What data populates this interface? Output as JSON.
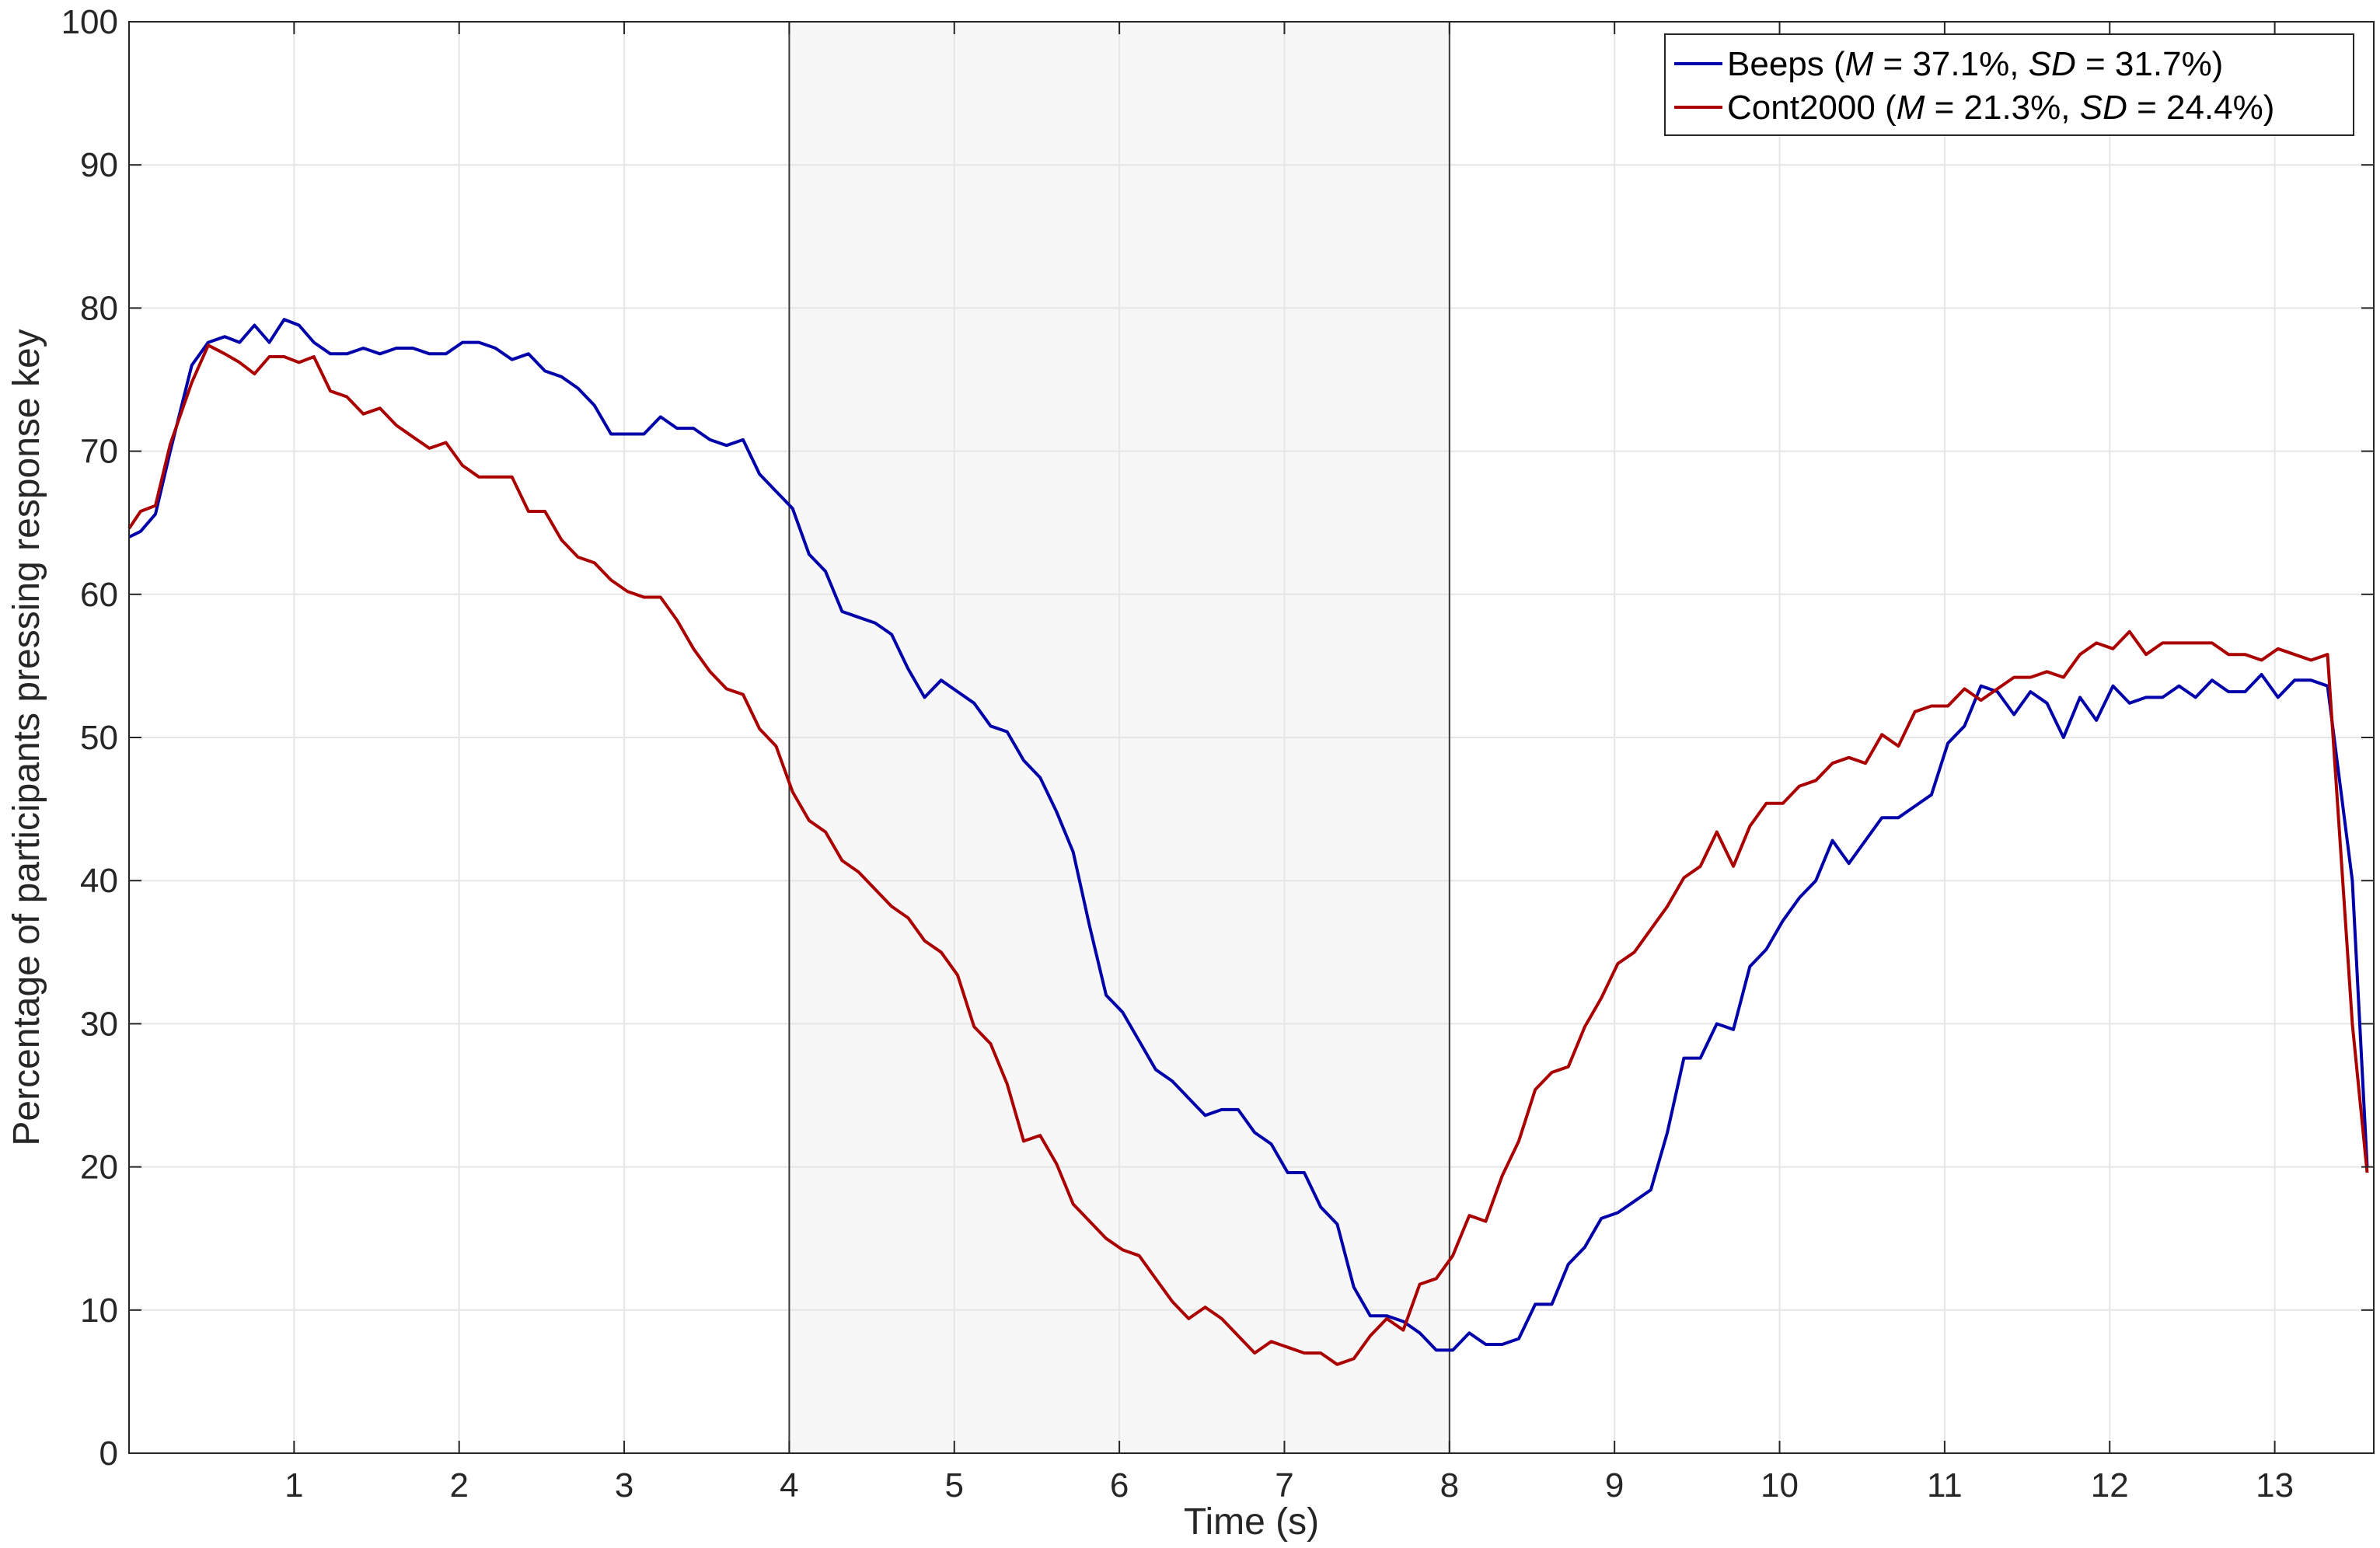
{
  "chart_data": {
    "type": "line",
    "xlabel": "Time (s)",
    "ylabel": "Percentage of participants pressing response key",
    "xlim": [
      0,
      13.6
    ],
    "ylim": [
      0,
      100
    ],
    "x_ticks": [
      1,
      2,
      3,
      4,
      5,
      6,
      7,
      8,
      9,
      10,
      11,
      12,
      13
    ],
    "y_ticks": [
      0,
      10,
      20,
      30,
      40,
      50,
      60,
      70,
      80,
      90,
      100
    ],
    "grid": true,
    "legend_position": "top-right",
    "shaded_region": {
      "x_start": 4,
      "x_end": 8
    },
    "vertical_lines": [
      4,
      8
    ],
    "colors": {
      "Beeps": "#0000aa",
      "Cont2000": "#aa0000",
      "shade": "#f7f7f7",
      "grid": "#e6e6e6"
    },
    "series": [
      {
        "name": "Beeps",
        "legend": {
          "base": "Beeps (",
          "m": "M",
          "m_val": " = 37.1%, ",
          "sd": "SD",
          "sd_val": " = 31.7%)"
        },
        "points": [
          [
            0,
            64.0
          ],
          [
            0.07,
            64.4
          ],
          [
            0.16,
            65.6
          ],
          [
            0.25,
            70
          ],
          [
            0.38,
            76.0
          ],
          [
            0.48,
            77.6
          ],
          [
            0.58,
            78.0
          ],
          [
            0.67,
            77.6
          ],
          [
            0.76,
            78.8
          ],
          [
            0.85,
            77.6
          ],
          [
            0.94,
            79.2
          ],
          [
            1.03,
            78.8
          ],
          [
            1.12,
            77.6
          ],
          [
            1.22,
            76.8
          ],
          [
            1.32,
            76.8
          ],
          [
            1.42,
            77.2
          ],
          [
            1.52,
            76.8
          ],
          [
            1.62,
            77.2
          ],
          [
            1.72,
            77.2
          ],
          [
            1.82,
            76.8
          ],
          [
            1.92,
            76.8
          ],
          [
            2.02,
            77.6
          ],
          [
            2.12,
            77.6
          ],
          [
            2.22,
            77.2
          ],
          [
            2.32,
            76.4
          ],
          [
            2.42,
            76.8
          ],
          [
            2.52,
            75.6
          ],
          [
            2.62,
            75.2
          ],
          [
            2.72,
            74.4
          ],
          [
            2.82,
            73.2
          ],
          [
            2.92,
            71.2
          ],
          [
            3.02,
            71.2
          ],
          [
            3.12,
            71.2
          ],
          [
            3.22,
            72.4
          ],
          [
            3.32,
            71.6
          ],
          [
            3.42,
            71.6
          ],
          [
            3.52,
            70.8
          ],
          [
            3.62,
            70.4
          ],
          [
            3.72,
            70.8
          ],
          [
            3.82,
            68.4
          ],
          [
            3.92,
            67.2
          ],
          [
            4.02,
            66.0
          ],
          [
            4.12,
            62.8
          ],
          [
            4.22,
            61.6
          ],
          [
            4.32,
            58.8
          ],
          [
            4.42,
            58.4
          ],
          [
            4.52,
            58.0
          ],
          [
            4.62,
            57.2
          ],
          [
            4.72,
            54.8
          ],
          [
            4.82,
            52.8
          ],
          [
            4.92,
            54.0
          ],
          [
            5.02,
            53.2
          ],
          [
            5.12,
            52.4
          ],
          [
            5.22,
            50.8
          ],
          [
            5.32,
            50.4
          ],
          [
            5.42,
            48.4
          ],
          [
            5.52,
            47.2
          ],
          [
            5.62,
            44.8
          ],
          [
            5.72,
            42.0
          ],
          [
            5.82,
            36.8
          ],
          [
            5.92,
            32.0
          ],
          [
            6.02,
            30.8
          ],
          [
            6.12,
            28.8
          ],
          [
            6.22,
            26.8
          ],
          [
            6.32,
            26.0
          ],
          [
            6.42,
            24.8
          ],
          [
            6.52,
            23.6
          ],
          [
            6.62,
            24.0
          ],
          [
            6.72,
            24.0
          ],
          [
            6.82,
            22.4
          ],
          [
            6.92,
            21.6
          ],
          [
            7.02,
            19.6
          ],
          [
            7.12,
            19.6
          ],
          [
            7.22,
            17.2
          ],
          [
            7.32,
            16.0
          ],
          [
            7.42,
            11.6
          ],
          [
            7.52,
            9.6
          ],
          [
            7.62,
            9.6
          ],
          [
            7.72,
            9.2
          ],
          [
            7.82,
            8.4
          ],
          [
            7.92,
            7.2
          ],
          [
            8.02,
            7.2
          ],
          [
            8.12,
            8.4
          ],
          [
            8.22,
            7.6
          ],
          [
            8.32,
            7.6
          ],
          [
            8.42,
            8.0
          ],
          [
            8.52,
            10.4
          ],
          [
            8.62,
            10.4
          ],
          [
            8.72,
            13.2
          ],
          [
            8.82,
            14.4
          ],
          [
            8.92,
            16.4
          ],
          [
            9.02,
            16.8
          ],
          [
            9.12,
            17.6
          ],
          [
            9.22,
            18.4
          ],
          [
            9.32,
            22.4
          ],
          [
            9.42,
            27.6
          ],
          [
            9.52,
            27.6
          ],
          [
            9.62,
            30.0
          ],
          [
            9.72,
            29.6
          ],
          [
            9.82,
            34.0
          ],
          [
            9.92,
            35.2
          ],
          [
            10.02,
            37.2
          ],
          [
            10.12,
            38.8
          ],
          [
            10.22,
            40.0
          ],
          [
            10.32,
            42.8
          ],
          [
            10.42,
            41.2
          ],
          [
            10.52,
            42.8
          ],
          [
            10.62,
            44.4
          ],
          [
            10.72,
            44.4
          ],
          [
            10.82,
            45.2
          ],
          [
            10.92,
            46.0
          ],
          [
            11.02,
            49.6
          ],
          [
            11.12,
            50.8
          ],
          [
            11.22,
            53.6
          ],
          [
            11.32,
            53.2
          ],
          [
            11.42,
            51.6
          ],
          [
            11.52,
            53.2
          ],
          [
            11.62,
            52.4
          ],
          [
            11.72,
            50.0
          ],
          [
            11.82,
            52.8
          ],
          [
            11.92,
            51.2
          ],
          [
            12.02,
            53.6
          ],
          [
            12.12,
            52.4
          ],
          [
            12.22,
            52.8
          ],
          [
            12.32,
            52.8
          ],
          [
            12.42,
            53.6
          ],
          [
            12.52,
            52.8
          ],
          [
            12.62,
            54.0
          ],
          [
            12.72,
            53.2
          ],
          [
            12.82,
            53.2
          ],
          [
            12.92,
            54.4
          ],
          [
            13.02,
            52.8
          ],
          [
            13.12,
            54.0
          ],
          [
            13.22,
            54.0
          ],
          [
            13.32,
            53.6
          ],
          [
            13.47,
            40.0
          ],
          [
            13.56,
            20.0
          ]
        ]
      },
      {
        "name": "Cont2000",
        "legend": {
          "base": "Cont2000 (",
          "m": "M",
          "m_val": " = 21.3%, ",
          "sd": "SD",
          "sd_val": " = 24.4%)"
        },
        "points": [
          [
            0,
            64.6
          ],
          [
            0.07,
            65.8
          ],
          [
            0.16,
            66.2
          ],
          [
            0.25,
            70.5
          ],
          [
            0.38,
            74.8
          ],
          [
            0.48,
            77.4
          ],
          [
            0.58,
            76.8
          ],
          [
            0.67,
            76.2
          ],
          [
            0.76,
            75.4
          ],
          [
            0.85,
            76.6
          ],
          [
            0.94,
            76.6
          ],
          [
            1.03,
            76.2
          ],
          [
            1.12,
            76.6
          ],
          [
            1.22,
            74.2
          ],
          [
            1.32,
            73.8
          ],
          [
            1.42,
            72.6
          ],
          [
            1.52,
            73.0
          ],
          [
            1.62,
            71.8
          ],
          [
            1.72,
            71.0
          ],
          [
            1.82,
            70.2
          ],
          [
            1.92,
            70.6
          ],
          [
            2.02,
            69.0
          ],
          [
            2.12,
            68.2
          ],
          [
            2.22,
            68.2
          ],
          [
            2.32,
            68.2
          ],
          [
            2.42,
            65.8
          ],
          [
            2.52,
            65.8
          ],
          [
            2.62,
            63.8
          ],
          [
            2.72,
            62.6
          ],
          [
            2.82,
            62.2
          ],
          [
            2.92,
            61.0
          ],
          [
            3.02,
            60.2
          ],
          [
            3.12,
            59.8
          ],
          [
            3.22,
            59.8
          ],
          [
            3.32,
            58.2
          ],
          [
            3.42,
            56.2
          ],
          [
            3.52,
            54.6
          ],
          [
            3.62,
            53.4
          ],
          [
            3.72,
            53.0
          ],
          [
            3.82,
            50.6
          ],
          [
            3.92,
            49.4
          ],
          [
            4.02,
            46.2
          ],
          [
            4.12,
            44.2
          ],
          [
            4.22,
            43.4
          ],
          [
            4.32,
            41.4
          ],
          [
            4.42,
            40.6
          ],
          [
            4.52,
            39.4
          ],
          [
            4.62,
            38.2
          ],
          [
            4.72,
            37.4
          ],
          [
            4.82,
            35.8
          ],
          [
            4.92,
            35.0
          ],
          [
            5.02,
            33.4
          ],
          [
            5.12,
            29.8
          ],
          [
            5.22,
            28.6
          ],
          [
            5.32,
            25.8
          ],
          [
            5.42,
            21.8
          ],
          [
            5.52,
            22.2
          ],
          [
            5.62,
            20.2
          ],
          [
            5.72,
            17.4
          ],
          [
            5.82,
            16.2
          ],
          [
            5.92,
            15.0
          ],
          [
            6.02,
            14.2
          ],
          [
            6.12,
            13.8
          ],
          [
            6.22,
            12.2
          ],
          [
            6.32,
            10.6
          ],
          [
            6.42,
            9.4
          ],
          [
            6.52,
            10.2
          ],
          [
            6.62,
            9.4
          ],
          [
            6.72,
            8.2
          ],
          [
            6.82,
            7.0
          ],
          [
            6.92,
            7.8
          ],
          [
            7.02,
            7.4
          ],
          [
            7.12,
            7.0
          ],
          [
            7.22,
            7.0
          ],
          [
            7.32,
            6.2
          ],
          [
            7.42,
            6.6
          ],
          [
            7.52,
            8.2
          ],
          [
            7.62,
            9.4
          ],
          [
            7.72,
            8.6
          ],
          [
            7.82,
            11.8
          ],
          [
            7.92,
            12.2
          ],
          [
            8.02,
            13.8
          ],
          [
            8.12,
            16.6
          ],
          [
            8.22,
            16.2
          ],
          [
            8.32,
            19.4
          ],
          [
            8.42,
            21.8
          ],
          [
            8.52,
            25.4
          ],
          [
            8.62,
            26.6
          ],
          [
            8.72,
            27.0
          ],
          [
            8.82,
            29.8
          ],
          [
            8.92,
            31.8
          ],
          [
            9.02,
            34.2
          ],
          [
            9.12,
            35.0
          ],
          [
            9.22,
            36.6
          ],
          [
            9.32,
            38.2
          ],
          [
            9.42,
            40.2
          ],
          [
            9.52,
            41.0
          ],
          [
            9.62,
            43.4
          ],
          [
            9.72,
            41.0
          ],
          [
            9.82,
            43.8
          ],
          [
            9.92,
            45.4
          ],
          [
            10.02,
            45.4
          ],
          [
            10.12,
            46.6
          ],
          [
            10.22,
            47.0
          ],
          [
            10.32,
            48.2
          ],
          [
            10.42,
            48.6
          ],
          [
            10.52,
            48.2
          ],
          [
            10.62,
            50.2
          ],
          [
            10.72,
            49.4
          ],
          [
            10.82,
            51.8
          ],
          [
            10.92,
            52.2
          ],
          [
            11.02,
            52.2
          ],
          [
            11.12,
            53.4
          ],
          [
            11.22,
            52.6
          ],
          [
            11.32,
            53.4
          ],
          [
            11.42,
            54.2
          ],
          [
            11.52,
            54.2
          ],
          [
            11.62,
            54.6
          ],
          [
            11.72,
            54.2
          ],
          [
            11.82,
            55.8
          ],
          [
            11.92,
            56.6
          ],
          [
            12.02,
            56.2
          ],
          [
            12.12,
            57.4
          ],
          [
            12.22,
            55.8
          ],
          [
            12.32,
            56.6
          ],
          [
            12.42,
            56.6
          ],
          [
            12.52,
            56.6
          ],
          [
            12.62,
            56.6
          ],
          [
            12.72,
            55.8
          ],
          [
            12.82,
            55.8
          ],
          [
            12.92,
            55.4
          ],
          [
            13.02,
            56.2
          ],
          [
            13.12,
            55.8
          ],
          [
            13.22,
            55.4
          ],
          [
            13.32,
            55.8
          ],
          [
            13.47,
            30.0
          ],
          [
            13.56,
            19.6
          ]
        ]
      }
    ]
  }
}
